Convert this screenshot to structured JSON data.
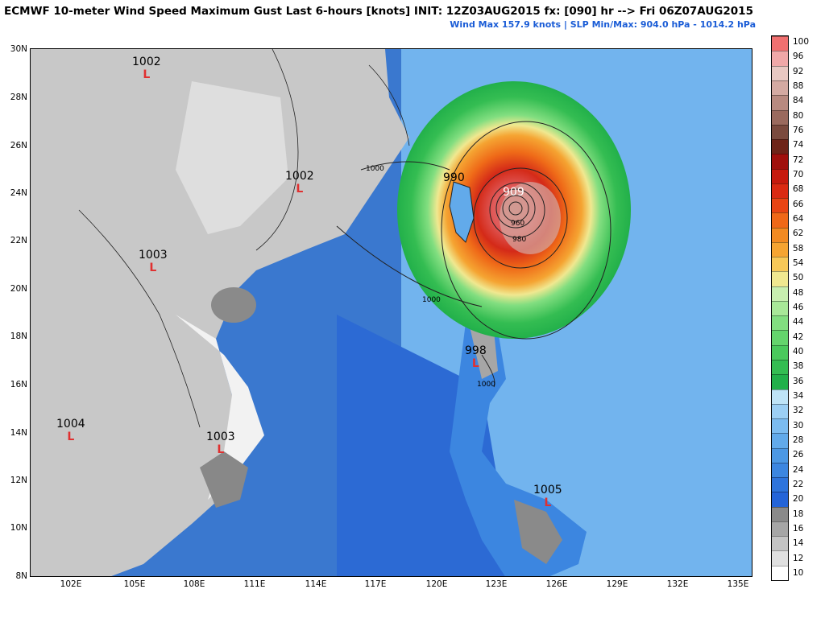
{
  "title": "ECMWF 10-meter Wind Speed Maximum Gust Last 6-hours [knots] INIT: 12Z03AUG2015 fx: [090] hr --> Fri 06Z07AUG2015",
  "subtitle": "Wind Max 157.9 knots | SLP Min/Max: 904.0 hPa - 1014.2 hPa",
  "map": {
    "lat_labels": [
      "30N",
      "28N",
      "26N",
      "24N",
      "22N",
      "20N",
      "18N",
      "16N",
      "14N",
      "12N",
      "10N",
      "8N"
    ],
    "lon_labels": [
      "102E",
      "105E",
      "108E",
      "111E",
      "114E",
      "117E",
      "120E",
      "123E",
      "126E",
      "129E",
      "132E",
      "135E"
    ],
    "pressure_labels": [
      {
        "value": "1002",
        "marker": "L"
      },
      {
        "value": "1002",
        "marker": "L"
      },
      {
        "value": "1003",
        "marker": "L"
      },
      {
        "value": "1004",
        "marker": "L"
      },
      {
        "value": "1003",
        "marker": "L"
      },
      {
        "value": "998",
        "marker": "L"
      },
      {
        "value": "1005",
        "marker": "L"
      },
      {
        "value": "990",
        "marker": ""
      },
      {
        "value": "909",
        "marker": ""
      }
    ],
    "isobar_labels": [
      "1000",
      "1000",
      "1000",
      "960",
      "980"
    ],
    "colors": {
      "typhoon_core": "#e05a5a",
      "land": "#c8c8c8",
      "ocean_calm": "#3f7fd1"
    }
  },
  "colorbar": {
    "labels": [
      "10",
      "12",
      "14",
      "16",
      "18",
      "20",
      "22",
      "24",
      "26",
      "28",
      "30",
      "32",
      "34",
      "36",
      "38",
      "40",
      "42",
      "44",
      "46",
      "48",
      "50",
      "54",
      "58",
      "62",
      "64",
      "66",
      "68",
      "70",
      "72",
      "74",
      "76",
      "80",
      "84",
      "88",
      "92",
      "96",
      "100"
    ],
    "colors": [
      "#ffffff",
      "#e0e0e0",
      "#c4c4c4",
      "#a6a6a6",
      "#8a8a8a",
      "#2464d8",
      "#2e74dc",
      "#3c86e0",
      "#4c98e4",
      "#62aaea",
      "#7cbcf0",
      "#9ccff4",
      "#bfe4f7",
      "#22b04a",
      "#34bd52",
      "#4ac95c",
      "#64d46c",
      "#82de80",
      "#a8e898",
      "#c8efb0",
      "#f0e890",
      "#f7c858",
      "#f5a432",
      "#f28a22",
      "#ef6818",
      "#e84414",
      "#da2a12",
      "#c61a0e",
      "#a0100c",
      "#6e2418",
      "#7a4a3e",
      "#9a6a5e",
      "#b88a80",
      "#d4aaa2",
      "#e8c8c2",
      "#f0a8a8",
      "#f07070"
    ]
  }
}
